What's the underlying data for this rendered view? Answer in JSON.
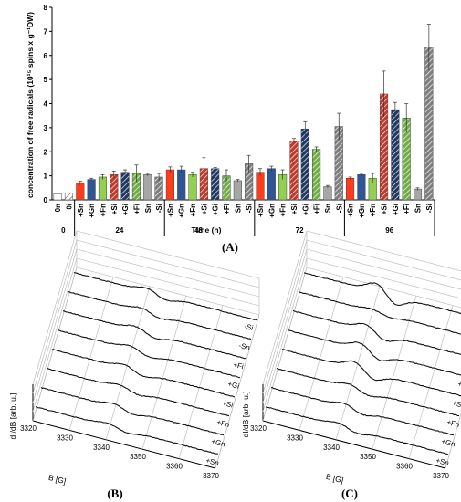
{
  "chart_data": [
    {
      "panel": "(A)",
      "type": "bar",
      "ylabel": "concentration of free radicals (10¹⁵ spins x g⁻¹DW)",
      "xlabel": "Time (h)",
      "ylim": [
        0,
        8
      ],
      "yticks": [
        "0",
        "1",
        "2",
        "3",
        "4",
        "5",
        "6",
        "7",
        "8"
      ],
      "groups": [
        {
          "time": "0",
          "bars": [
            {
              "label": "0n",
              "value": 0.25,
              "err": 0.0,
              "color": "#ffffff",
              "hatch": false
            },
            {
              "label": "0i",
              "value": 0.28,
              "err": 0.0,
              "color": "#ffffff",
              "hatch": true
            }
          ]
        },
        {
          "time": "24",
          "bars": [
            {
              "label": "+Sn",
              "value": 0.7,
              "err": 0.08,
              "color": "#ff3b1a",
              "hatch": false
            },
            {
              "label": "+Gn",
              "value": 0.85,
              "err": 0.05,
              "color": "#2f5597",
              "hatch": false
            },
            {
              "label": "+Fn",
              "value": 0.95,
              "err": 0.1,
              "color": "#92d050",
              "hatch": false
            },
            {
              "label": "+Si",
              "value": 1.05,
              "err": 0.15,
              "color": "#c0392b",
              "hatch": true
            },
            {
              "label": "+Gi",
              "value": 1.15,
              "err": 0.1,
              "color": "#1f3864",
              "hatch": true
            },
            {
              "label": "+Fi",
              "value": 1.1,
              "err": 0.35,
              "color": "#70ad47",
              "hatch": true
            },
            {
              "label": "Sn",
              "value": 1.05,
              "err": 0.05,
              "color": "#a6a6a6",
              "hatch": false
            },
            {
              "label": "-Si",
              "value": 0.95,
              "err": 0.15,
              "color": "#7f7f7f",
              "hatch": true
            }
          ]
        },
        {
          "time": "48",
          "bars": [
            {
              "label": "+Sn",
              "value": 1.25,
              "err": 0.12,
              "color": "#ff3b1a",
              "hatch": false
            },
            {
              "label": "+Gn",
              "value": 1.25,
              "err": 0.15,
              "color": "#2f5597",
              "hatch": false
            },
            {
              "label": "+Fn",
              "value": 1.05,
              "err": 0.1,
              "color": "#92d050",
              "hatch": false
            },
            {
              "label": "+Si",
              "value": 1.3,
              "err": 0.45,
              "color": "#c0392b",
              "hatch": true
            },
            {
              "label": "+Gi",
              "value": 1.3,
              "err": 0.05,
              "color": "#1f3864",
              "hatch": true
            },
            {
              "label": "+Fi",
              "value": 1.0,
              "err": 0.25,
              "color": "#70ad47",
              "hatch": true
            },
            {
              "label": "Sn",
              "value": 0.8,
              "err": 0.05,
              "color": "#a6a6a6",
              "hatch": false
            },
            {
              "label": "-Si",
              "value": 1.5,
              "err": 0.35,
              "color": "#7f7f7f",
              "hatch": true
            }
          ]
        },
        {
          "time": "72",
          "bars": [
            {
              "label": "+Sn",
              "value": 1.15,
              "err": 0.15,
              "color": "#ff3b1a",
              "hatch": false
            },
            {
              "label": "+Gn",
              "value": 1.3,
              "err": 0.1,
              "color": "#2f5597",
              "hatch": false
            },
            {
              "label": "+Fn",
              "value": 1.05,
              "err": 0.2,
              "color": "#92d050",
              "hatch": false
            },
            {
              "label": "+Si",
              "value": 2.45,
              "err": 0.1,
              "color": "#c0392b",
              "hatch": true
            },
            {
              "label": "+Gi",
              "value": 2.95,
              "err": 0.3,
              "color": "#1f3864",
              "hatch": true
            },
            {
              "label": "+Fi",
              "value": 2.1,
              "err": 0.1,
              "color": "#70ad47",
              "hatch": true
            },
            {
              "label": "Sn",
              "value": 0.55,
              "err": 0.05,
              "color": "#a6a6a6",
              "hatch": false
            },
            {
              "label": "-Si",
              "value": 3.05,
              "err": 0.55,
              "color": "#7f7f7f",
              "hatch": true
            }
          ]
        },
        {
          "time": "96",
          "bars": [
            {
              "label": "+Sn",
              "value": 0.9,
              "err": 0.05,
              "color": "#ff3b1a",
              "hatch": false
            },
            {
              "label": "+Gn",
              "value": 1.05,
              "err": 0.05,
              "color": "#2f5597",
              "hatch": false
            },
            {
              "label": "+Fn",
              "value": 0.9,
              "err": 0.2,
              "color": "#92d050",
              "hatch": false
            },
            {
              "label": "+Si",
              "value": 4.4,
              "err": 0.95,
              "color": "#c0392b",
              "hatch": true
            },
            {
              "label": "+Gi",
              "value": 3.75,
              "err": 0.3,
              "color": "#1f3864",
              "hatch": true
            },
            {
              "label": "+Fi",
              "value": 3.4,
              "err": 0.6,
              "color": "#70ad47",
              "hatch": true
            },
            {
              "label": "Sn",
              "value": 0.45,
              "err": 0.05,
              "color": "#a6a6a6",
              "hatch": false
            },
            {
              "label": "-Si",
              "value": 6.35,
              "err": 0.95,
              "color": "#7f7f7f",
              "hatch": true
            }
          ]
        }
      ]
    },
    {
      "panel": "(B)",
      "type": "line",
      "ylabel": "dI/dB [arb. u.]",
      "xlabel": "B [G]",
      "xticks": [
        "3320",
        "3330",
        "3340",
        "3350",
        "3360",
        "3370"
      ],
      "series": [
        {
          "name": "-Si",
          "amplitude": 0.9
        },
        {
          "name": "-Sn",
          "amplitude": 0.7
        },
        {
          "name": "+Fi",
          "amplitude": 0.85
        },
        {
          "name": "+Gi",
          "amplitude": 0.8
        },
        {
          "name": "+Si",
          "amplitude": 0.85
        },
        {
          "name": "+Fn",
          "amplitude": 0.65
        },
        {
          "name": "+Gn",
          "amplitude": 0.7
        },
        {
          "name": "+Sn",
          "amplitude": 0.6
        }
      ]
    },
    {
      "panel": "(C)",
      "type": "line",
      "ylabel": "dI/dB [arb. u.]",
      "xlabel": "B [G]",
      "xticks": [
        "3320",
        "3330",
        "3340",
        "3350",
        "3360",
        "3370"
      ],
      "series": [
        {
          "name": "-Si",
          "amplitude": 2.0
        },
        {
          "name": "-Sn",
          "amplitude": 0.5
        },
        {
          "name": "+Fi",
          "amplitude": 1.4
        },
        {
          "name": "+Gi",
          "amplitude": 1.5
        },
        {
          "name": "+Si",
          "amplitude": 1.6
        },
        {
          "name": "+Fn",
          "amplitude": 0.8
        },
        {
          "name": "+Gn",
          "amplitude": 0.8
        },
        {
          "name": "+Sn",
          "amplitude": 0.7
        }
      ]
    }
  ]
}
